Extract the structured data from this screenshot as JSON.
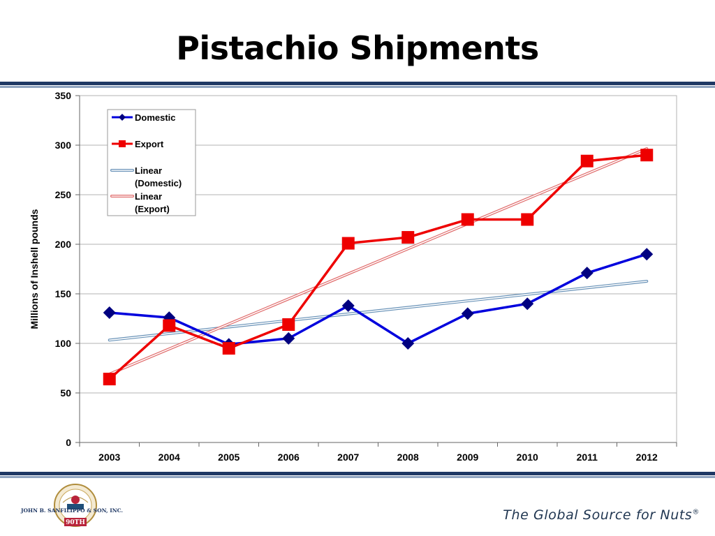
{
  "slide": {
    "title": "Pistachio Shipments",
    "tagline": "The Global Source for Nuts",
    "tagline_mark": "®",
    "logo_text": "JOHN B. SANFILIPPO & SON, INC.",
    "logo_ribbon": "90TH YEAR",
    "logo_arc": "CELEBRATING OUR"
  },
  "colors": {
    "rule_dark": "#1f3864",
    "rule_light": "#8fa3bf",
    "domestic": "#0000dd",
    "domestic_marker": "#000080",
    "export": "#ee0000",
    "trend_domestic": "#6a93b8",
    "trend_export": "#e06b6b",
    "grid": "#b3b3b3"
  },
  "chart_data": {
    "type": "line",
    "ylabel": "Millions of Inshell pounds",
    "xlabel": "",
    "ylim": [
      0,
      350
    ],
    "yticks": [
      0,
      50,
      100,
      150,
      200,
      250,
      300,
      350
    ],
    "grid": true,
    "legend_position": "top-left",
    "categories": [
      "2003",
      "2004",
      "2005",
      "2006",
      "2007",
      "2008",
      "2009",
      "2010",
      "2011",
      "2012"
    ],
    "series": [
      {
        "name": "Domestic",
        "marker": "diamond",
        "values": [
          131,
          126,
          99,
          105,
          138,
          100,
          130,
          140,
          171,
          190
        ]
      },
      {
        "name": "Export",
        "marker": "square",
        "values": [
          64,
          118,
          95,
          119,
          201,
          207,
          225,
          225,
          284,
          290
        ]
      }
    ],
    "trendlines": [
      {
        "name": "Linear (Domestic)",
        "legend_lines": [
          "Linear",
          "(Domestic)"
        ],
        "type": "linear",
        "series": "Domestic"
      },
      {
        "name": "Linear (Export)",
        "legend_lines": [
          "Linear",
          "(Export)"
        ],
        "type": "linear",
        "series": "Export"
      }
    ]
  }
}
